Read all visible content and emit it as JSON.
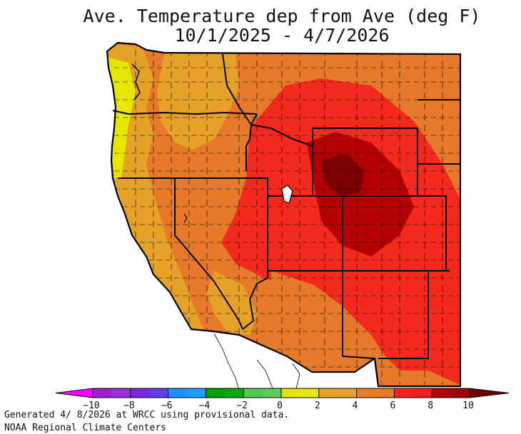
{
  "title_line1": "Ave. Temperature dep from Ave (deg F)",
  "title_line2": "10/1/2025 - 4/7/2026",
  "footer_line1": "Generated 4/ 8/2026 at WRCC using provisional data.",
  "footer_line2": "NOAA Regional Climate Centers",
  "legend": {
    "tick_labels": [
      "−10",
      "−8",
      "−6",
      "−4",
      "−2",
      "0",
      "2",
      "4",
      "6",
      "8",
      "10"
    ],
    "tick_values": [
      -10,
      -8,
      -6,
      -4,
      -2,
      0,
      2,
      4,
      6,
      8,
      10
    ],
    "bins": [
      {
        "from": -11,
        "to": -10,
        "color": "#ff00ff"
      },
      {
        "from": -10,
        "to": -9,
        "color": "#a020c8"
      },
      {
        "from": -9,
        "to": -8,
        "color": "#9b30d8"
      },
      {
        "from": -8,
        "to": -7,
        "color": "#7a28e0"
      },
      {
        "from": -7,
        "to": -6,
        "color": "#6040e8"
      },
      {
        "from": -6,
        "to": -5,
        "color": "#1e90ff"
      },
      {
        "from": -5,
        "to": -4,
        "color": "#1e9fff"
      },
      {
        "from": -4,
        "to": -3,
        "color": "#00a000"
      },
      {
        "from": -3,
        "to": -2,
        "color": "#10a810"
      },
      {
        "from": -2,
        "to": -1,
        "color": "#50c850"
      },
      {
        "from": -1,
        "to": 0,
        "color": "#60cc60"
      },
      {
        "from": 0,
        "to": 1,
        "color": "#e6e600"
      },
      {
        "from": 1,
        "to": 2,
        "color": "#e6e610"
      },
      {
        "from": 2,
        "to": 3,
        "color": "#e6a228"
      },
      {
        "from": 3,
        "to": 4,
        "color": "#e6a230"
      },
      {
        "from": 4,
        "to": 5,
        "color": "#e67e28"
      },
      {
        "from": 5,
        "to": 6,
        "color": "#e67a2a"
      },
      {
        "from": 6,
        "to": 7,
        "color": "#ff2020"
      },
      {
        "from": 7,
        "to": 8,
        "color": "#f02020"
      },
      {
        "from": 8,
        "to": 9,
        "color": "#b00000"
      },
      {
        "from": 9,
        "to": 10,
        "color": "#a00000"
      },
      {
        "from": 10,
        "to": 11,
        "color": "#700000"
      }
    ]
  },
  "map_colors": {
    "near_normal": "#e6e600",
    "above_2_4": "#e6a228",
    "above_4_6": "#e67a2a",
    "above_6_8": "#f52a1e",
    "above_8_10": "#b40000",
    "above_10": "#7a0000",
    "outside": "#ffffff"
  }
}
